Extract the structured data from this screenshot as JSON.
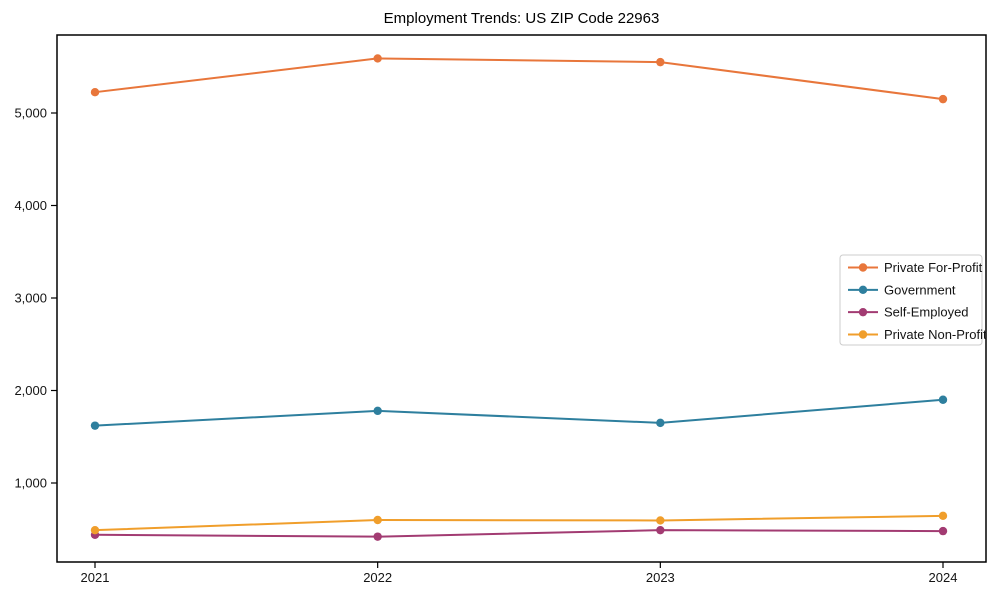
{
  "chart_data": {
    "type": "line",
    "title": "Employment Trends: US ZIP Code 22963",
    "categories": [
      "2021",
      "2022",
      "2023",
      "2024"
    ],
    "series": [
      {
        "name": "Private For-Profit",
        "color": "#E8763B",
        "values": [
          5225,
          5590,
          5550,
          5150
        ]
      },
      {
        "name": "Government",
        "color": "#2E7F9E",
        "values": [
          1620,
          1780,
          1650,
          1900
        ]
      },
      {
        "name": "Self-Employed",
        "color": "#A23B72",
        "values": [
          440,
          420,
          490,
          480
        ]
      },
      {
        "name": "Private Non-Profit",
        "color": "#F09E2B",
        "values": [
          490,
          600,
          595,
          645
        ]
      }
    ],
    "y_ticks": [
      1000,
      2000,
      3000,
      4000,
      5000
    ],
    "y_tick_labels": [
      "1,000",
      "2,000",
      "3,000",
      "4,000",
      "5,000"
    ],
    "ylim": [
      150,
      5850
    ],
    "xlabel": "",
    "ylabel": "",
    "grid": false,
    "legend_position": "center-right",
    "axis_color": "#000000",
    "background_color": "#ffffff"
  }
}
